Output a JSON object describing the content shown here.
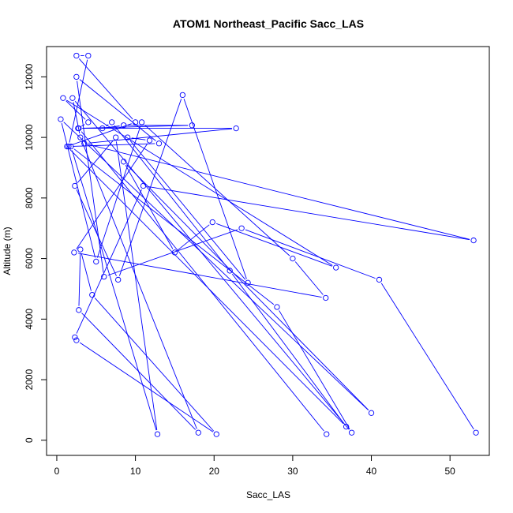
{
  "chart_data": {
    "type": "line",
    "title": "ATOM1 Northeast_Pacific Sacc_LAS",
    "xlabel": "Sacc_LAS",
    "ylabel": "Altitude (m)",
    "xlim": [
      -1.3,
      55.0
    ],
    "ylim": [
      -500,
      13000
    ],
    "x_ticks": [
      0,
      10,
      20,
      30,
      40,
      50
    ],
    "y_ticks": [
      0,
      2000,
      4000,
      6000,
      8000,
      10000,
      12000
    ],
    "x_tick_labels": [
      "0",
      "10",
      "20",
      "30",
      "40",
      "50"
    ],
    "y_tick_labels": [
      "0",
      "2000",
      "4000",
      "6000",
      "8000",
      "10000",
      "12000"
    ],
    "grid": false,
    "series": [
      {
        "color": "#0000ff",
        "marker": "open-circle",
        "x": [
          53.3,
          41.0,
          23.5,
          6.0,
          2.5,
          13.0,
          1.5,
          4.0,
          2.5,
          10.0,
          1.3,
          36.8,
          22.0,
          7.0,
          5.8,
          8.5,
          17.2,
          2.7,
          4.0,
          0.8,
          35.5,
          19.8,
          15.0,
          8.5,
          40.0,
          0.5,
          5.0,
          10.8,
          30.0,
          34.2,
          2.2,
          11.8,
          9.0,
          24.3,
          16.0,
          7.8,
          2.3,
          7.5,
          12.8,
          1.8,
          28.0,
          37.5,
          2.0,
          3.0,
          18.0,
          2.8,
          3.0,
          4.5,
          20.3,
          2.5,
          2.3,
          11.0,
          53.0,
          3.5,
          22.8,
          2.8,
          34.3
        ],
        "y": [
          250,
          5300,
          7000,
          5400,
          12000,
          9800,
          9700,
          12700,
          12700,
          10500,
          9700,
          450,
          5600,
          10500,
          10300,
          10400,
          10400,
          10300,
          10500,
          11300,
          5700,
          7200,
          6200,
          9200,
          900,
          10600,
          5900,
          10500,
          6000,
          4700,
          6200,
          9900,
          10000,
          5200,
          11400,
          5300,
          8400,
          10000,
          200,
          9700,
          4400,
          250,
          11300,
          10000,
          250,
          4300,
          6300,
          4800,
          200,
          3300,
          3400,
          8400,
          6600,
          9800,
          10300,
          10300,
          200
        ]
      }
    ]
  }
}
